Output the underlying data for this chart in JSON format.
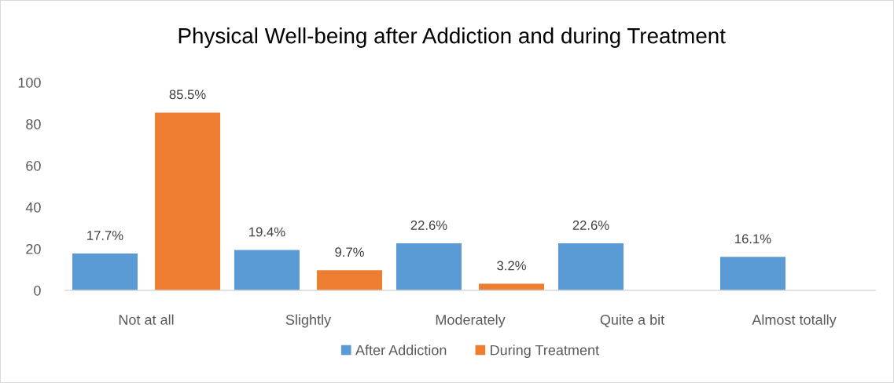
{
  "chart_data": {
    "type": "bar",
    "title": "Physical Well-being after Addiction and during Treatment",
    "categories": [
      "Not at all",
      "Slightly",
      "Moderately",
      "Quite a bit",
      "Almost totally"
    ],
    "series": [
      {
        "name": "After Addiction",
        "color": "#5b9bd5",
        "values": [
          17.7,
          19.4,
          22.6,
          22.6,
          16.1
        ],
        "value_labels": [
          "17.7%",
          "19.4%",
          "22.6%",
          "22.6%",
          "16.1%"
        ]
      },
      {
        "name": "During Treatment",
        "color": "#ed7d31",
        "values": [
          85.5,
          9.7,
          3.2,
          null,
          null
        ],
        "value_labels": [
          "85.5%",
          "9.7%",
          "3.2%",
          null,
          null
        ]
      }
    ],
    "ylim": [
      0,
      100
    ],
    "yticks": [
      0,
      20,
      40,
      60,
      80,
      100
    ],
    "grid": false,
    "legend": "bottom"
  }
}
